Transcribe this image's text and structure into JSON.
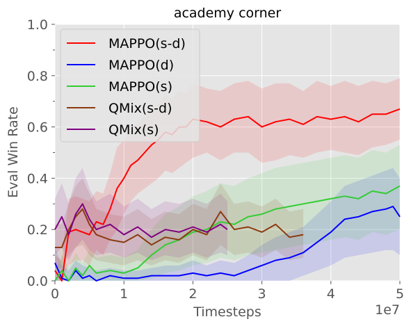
{
  "chart_data": {
    "type": "line",
    "title": "academy corner",
    "xlabel": "Timesteps",
    "ylabel": "Eval Win Rate",
    "x_scale_label": "1e7",
    "xlim": [
      0,
      5
    ],
    "ylim": [
      0,
      1.0
    ],
    "x_ticks": [
      "0",
      "1",
      "2",
      "3",
      "4",
      "5"
    ],
    "y_ticks": [
      "0.0",
      "0.2",
      "0.4",
      "0.6",
      "0.8",
      "1.0"
    ],
    "grid": true,
    "legend_position": "top-left",
    "series": [
      {
        "name": "MAPPO(s-d)",
        "color": "#ff0000",
        "x": [
          0.0,
          0.1,
          0.2,
          0.3,
          0.4,
          0.5,
          0.6,
          0.7,
          0.8,
          0.9,
          1.0,
          1.1,
          1.2,
          1.3,
          1.4,
          1.5,
          1.6,
          1.7,
          1.8,
          1.9,
          2.0,
          2.2,
          2.4,
          2.6,
          2.8,
          3.0,
          3.2,
          3.4,
          3.6,
          3.8,
          4.0,
          4.2,
          4.4,
          4.6,
          4.8,
          5.0
        ],
        "values": [
          0.04,
          0.0,
          0.19,
          0.2,
          0.19,
          0.18,
          0.23,
          0.22,
          0.28,
          0.36,
          0.4,
          0.45,
          0.47,
          0.5,
          0.53,
          0.55,
          0.58,
          0.57,
          0.6,
          0.6,
          0.63,
          0.62,
          0.6,
          0.63,
          0.64,
          0.6,
          0.62,
          0.63,
          0.61,
          0.64,
          0.63,
          0.64,
          0.62,
          0.65,
          0.65,
          0.67
        ],
        "band_low": [
          0.0,
          0.0,
          0.06,
          0.08,
          0.08,
          0.06,
          0.12,
          0.1,
          0.16,
          0.2,
          0.26,
          0.31,
          0.34,
          0.36,
          0.38,
          0.4,
          0.43,
          0.42,
          0.44,
          0.46,
          0.48,
          0.5,
          0.47,
          0.5,
          0.5,
          0.46,
          0.47,
          0.49,
          0.48,
          0.5,
          0.51,
          0.5,
          0.49,
          0.52,
          0.53,
          0.55
        ],
        "band_high": [
          0.1,
          0.08,
          0.32,
          0.33,
          0.32,
          0.31,
          0.35,
          0.34,
          0.42,
          0.52,
          0.55,
          0.6,
          0.61,
          0.64,
          0.67,
          0.69,
          0.72,
          0.71,
          0.74,
          0.73,
          0.77,
          0.75,
          0.74,
          0.77,
          0.78,
          0.75,
          0.77,
          0.77,
          0.74,
          0.78,
          0.76,
          0.78,
          0.76,
          0.78,
          0.77,
          0.79
        ]
      },
      {
        "name": "MAPPO(d)",
        "color": "#0000ff",
        "x": [
          0.0,
          0.1,
          0.2,
          0.3,
          0.4,
          0.5,
          0.6,
          0.8,
          1.0,
          1.2,
          1.4,
          1.6,
          1.8,
          2.0,
          2.2,
          2.4,
          2.6,
          2.8,
          3.0,
          3.2,
          3.4,
          3.6,
          3.8,
          4.0,
          4.2,
          4.4,
          4.6,
          4.8,
          4.9,
          5.0
        ],
        "values": [
          0.07,
          0.01,
          0.0,
          0.04,
          0.01,
          0.02,
          0.0,
          0.02,
          0.01,
          0.01,
          0.02,
          0.02,
          0.02,
          0.03,
          0.02,
          0.03,
          0.02,
          0.04,
          0.06,
          0.08,
          0.09,
          0.11,
          0.15,
          0.19,
          0.24,
          0.25,
          0.27,
          0.28,
          0.29,
          0.25
        ],
        "band_low": [
          0.0,
          0.0,
          0.0,
          0.0,
          0.0,
          0.0,
          0.0,
          0.0,
          0.0,
          0.0,
          0.0,
          0.0,
          0.0,
          0.0,
          0.0,
          0.0,
          0.0,
          0.0,
          0.0,
          0.0,
          0.0,
          0.02,
          0.04,
          0.06,
          0.09,
          0.1,
          0.11,
          0.12,
          0.12,
          0.1
        ],
        "band_high": [
          0.13,
          0.06,
          0.04,
          0.08,
          0.06,
          0.05,
          0.04,
          0.05,
          0.04,
          0.04,
          0.05,
          0.06,
          0.06,
          0.08,
          0.06,
          0.08,
          0.07,
          0.1,
          0.14,
          0.17,
          0.19,
          0.21,
          0.26,
          0.31,
          0.37,
          0.39,
          0.41,
          0.43,
          0.44,
          0.4
        ]
      },
      {
        "name": "MAPPO(s)",
        "color": "#33cc33",
        "x": [
          0.0,
          0.1,
          0.2,
          0.3,
          0.4,
          0.5,
          0.6,
          0.8,
          1.0,
          1.2,
          1.4,
          1.6,
          1.8,
          2.0,
          2.2,
          2.4,
          2.6,
          2.8,
          3.0,
          3.2,
          3.4,
          3.6,
          3.8,
          4.0,
          4.2,
          4.4,
          4.6,
          4.8,
          5.0
        ],
        "values": [
          0.0,
          0.04,
          0.0,
          0.05,
          0.02,
          0.06,
          0.03,
          0.04,
          0.03,
          0.05,
          0.1,
          0.14,
          0.16,
          0.19,
          0.2,
          0.23,
          0.22,
          0.25,
          0.26,
          0.28,
          0.29,
          0.3,
          0.31,
          0.32,
          0.33,
          0.32,
          0.35,
          0.34,
          0.37
        ],
        "band_low": [
          0.0,
          0.0,
          0.0,
          0.0,
          0.0,
          0.0,
          0.0,
          0.0,
          0.0,
          0.0,
          0.01,
          0.03,
          0.04,
          0.06,
          0.07,
          0.09,
          0.08,
          0.1,
          0.11,
          0.12,
          0.13,
          0.14,
          0.15,
          0.16,
          0.17,
          0.16,
          0.19,
          0.18,
          0.2
        ],
        "band_high": [
          0.04,
          0.1,
          0.05,
          0.11,
          0.07,
          0.12,
          0.09,
          0.1,
          0.09,
          0.12,
          0.2,
          0.26,
          0.29,
          0.33,
          0.35,
          0.38,
          0.37,
          0.4,
          0.42,
          0.44,
          0.45,
          0.46,
          0.47,
          0.48,
          0.49,
          0.48,
          0.51,
          0.5,
          0.53
        ]
      },
      {
        "name": "QMix(s-d)",
        "color": "#8b3a0f",
        "x": [
          0.0,
          0.1,
          0.2,
          0.3,
          0.4,
          0.5,
          0.6,
          0.8,
          1.0,
          1.2,
          1.4,
          1.6,
          1.8,
          2.0,
          2.2,
          2.4,
          2.6,
          2.8,
          3.0,
          3.2,
          3.4,
          3.6
        ],
        "values": [
          0.13,
          0.13,
          0.2,
          0.25,
          0.28,
          0.22,
          0.18,
          0.16,
          0.15,
          0.18,
          0.14,
          0.17,
          0.16,
          0.2,
          0.18,
          0.27,
          0.2,
          0.21,
          0.19,
          0.22,
          0.17,
          0.18
        ],
        "band_low": [
          0.05,
          0.05,
          0.1,
          0.13,
          0.14,
          0.1,
          0.08,
          0.07,
          0.06,
          0.08,
          0.06,
          0.08,
          0.07,
          0.1,
          0.08,
          0.14,
          0.1,
          0.11,
          0.09,
          0.12,
          0.08,
          0.09
        ],
        "band_high": [
          0.22,
          0.22,
          0.3,
          0.37,
          0.4,
          0.34,
          0.28,
          0.26,
          0.25,
          0.28,
          0.24,
          0.27,
          0.26,
          0.3,
          0.28,
          0.38,
          0.3,
          0.31,
          0.29,
          0.32,
          0.27,
          0.28
        ]
      },
      {
        "name": "QMix(s)",
        "color": "#800080",
        "x": [
          0.0,
          0.1,
          0.2,
          0.3,
          0.4,
          0.5,
          0.6,
          0.8,
          1.0,
          1.2,
          1.4,
          1.6,
          1.8,
          2.0,
          2.2,
          2.4,
          2.5
        ],
        "values": [
          0.2,
          0.25,
          0.18,
          0.26,
          0.3,
          0.24,
          0.2,
          0.22,
          0.18,
          0.21,
          0.17,
          0.2,
          0.19,
          0.21,
          0.19,
          0.22,
          0.2
        ],
        "band_low": [
          0.1,
          0.13,
          0.08,
          0.13,
          0.16,
          0.12,
          0.1,
          0.11,
          0.09,
          0.11,
          0.08,
          0.1,
          0.09,
          0.11,
          0.09,
          0.11,
          0.1
        ],
        "band_high": [
          0.32,
          0.38,
          0.3,
          0.4,
          0.44,
          0.36,
          0.31,
          0.34,
          0.29,
          0.32,
          0.28,
          0.31,
          0.3,
          0.32,
          0.3,
          0.34,
          0.31
        ]
      }
    ]
  }
}
